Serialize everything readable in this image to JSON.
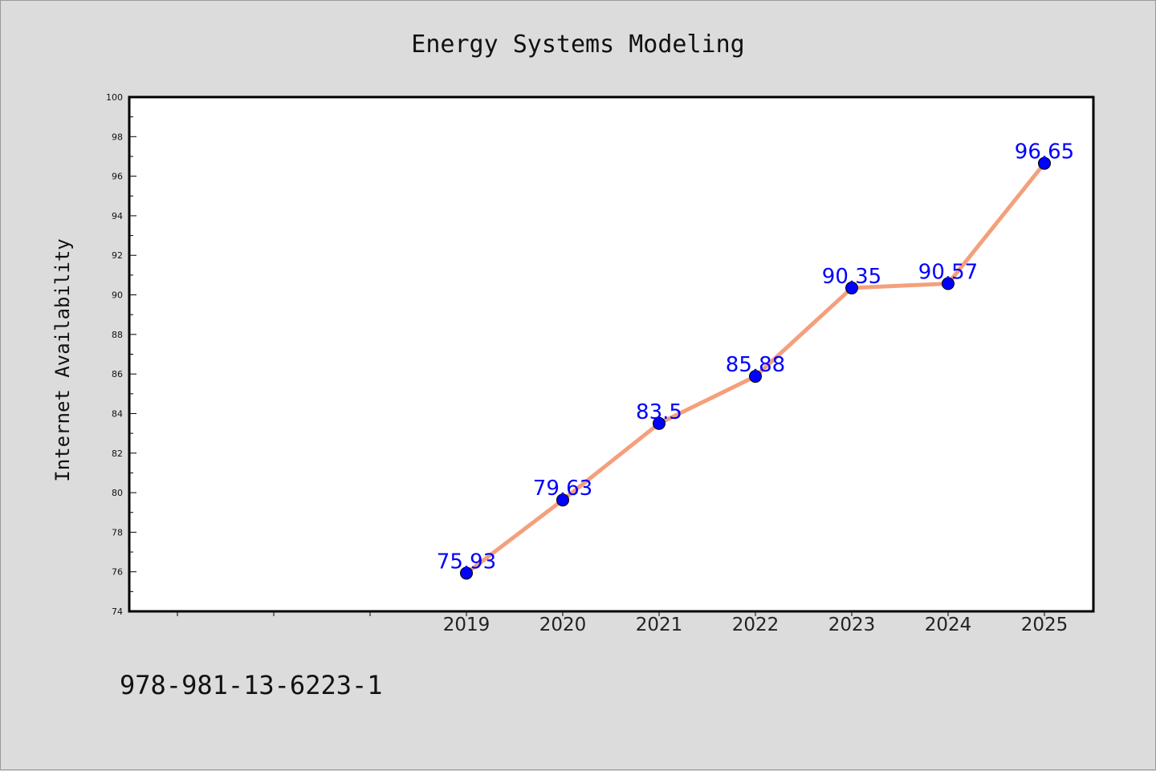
{
  "chart_data": {
    "type": "line",
    "title": "Energy Systems Modeling",
    "xlabel": "",
    "ylabel": "Internet Availability",
    "x": [
      "2019",
      "2020",
      "2021",
      "2022",
      "2023",
      "2024",
      "2025"
    ],
    "values": [
      75.93,
      79.63,
      83.5,
      85.88,
      90.35,
      90.57,
      96.65
    ],
    "data_labels": [
      "75.93",
      "79.63",
      "83.5",
      "85.88",
      "90.35",
      "90.57",
      "96.65"
    ],
    "ylim": [
      74,
      100
    ],
    "yticks": [
      "74",
      "76",
      "78",
      "80",
      "82",
      "84",
      "86",
      "88",
      "90",
      "92",
      "94",
      "96",
      "98",
      "100"
    ],
    "grid": false,
    "legend": "none",
    "colors": {
      "line": "#f4a07c",
      "marker": "#0000ff",
      "label": "#0000ff",
      "background": "#dcdcdc",
      "plot": "#ffffff"
    }
  },
  "footnote": "978-981-13-6223-1"
}
